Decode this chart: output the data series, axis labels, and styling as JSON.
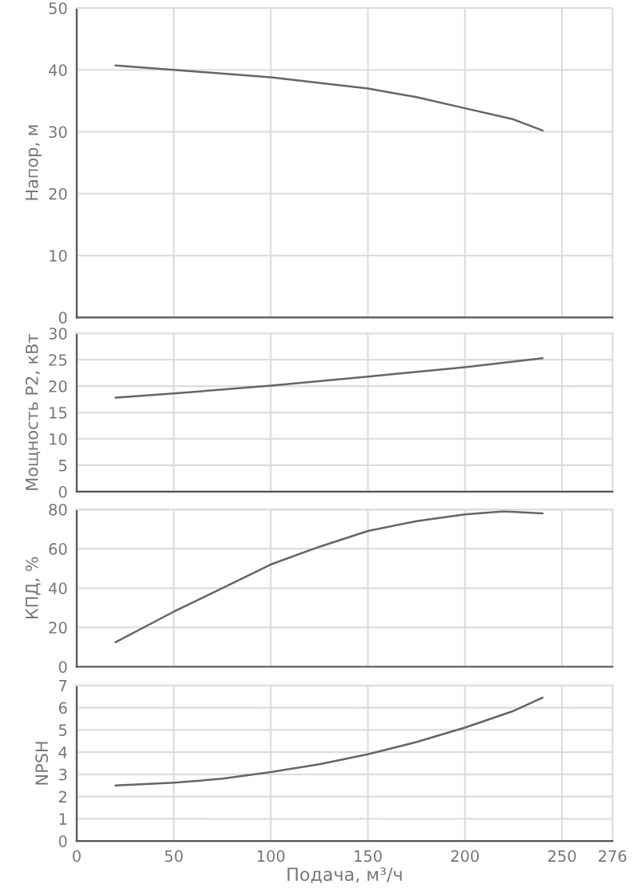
{
  "chart_data": [
    {
      "type": "line",
      "ylabel": "Напор, м",
      "xlim": [
        0,
        276
      ],
      "xticks": [
        0,
        50,
        100,
        150,
        200,
        250,
        276
      ],
      "ylim": [
        0,
        50
      ],
      "yticks": [
        0,
        10,
        20,
        30,
        40,
        50
      ],
      "grid": true,
      "tick_labels": "y",
      "series": [
        {
          "color": "#666666",
          "x": [
            20,
            50,
            100,
            150,
            175,
            200,
            225,
            240
          ],
          "values": [
            40.7,
            40.0,
            38.8,
            37.0,
            35.6,
            33.8,
            32.0,
            30.2
          ]
        }
      ]
    },
    {
      "type": "line",
      "ylabel": "Мощность P2, кВт",
      "xlim": [
        0,
        276
      ],
      "xticks": [
        0,
        50,
        100,
        150,
        200,
        250,
        276
      ],
      "ylim": [
        0,
        30
      ],
      "yticks": [
        0,
        5,
        10,
        15,
        20,
        25,
        30
      ],
      "grid": true,
      "tick_labels": "y",
      "series": [
        {
          "color": "#666666",
          "x": [
            20,
            50,
            100,
            150,
            200,
            240
          ],
          "values": [
            17.8,
            18.6,
            20.1,
            21.8,
            23.6,
            25.3
          ]
        }
      ]
    },
    {
      "type": "line",
      "ylabel": "КПД, %",
      "xlim": [
        0,
        276
      ],
      "xticks": [
        0,
        50,
        100,
        150,
        200,
        250,
        276
      ],
      "ylim": [
        0,
        80
      ],
      "yticks": [
        0,
        20,
        40,
        60,
        80
      ],
      "grid": true,
      "tick_labels": "y",
      "series": [
        {
          "color": "#666666",
          "x": [
            20,
            50,
            75,
            100,
            125,
            150,
            175,
            200,
            220,
            240
          ],
          "values": [
            12.5,
            28,
            40,
            52,
            61,
            69,
            74,
            77.5,
            79,
            78
          ]
        }
      ]
    },
    {
      "type": "line",
      "ylabel": "NPSH",
      "xlabel": "Подача, м³/ч",
      "xlim": [
        0,
        276
      ],
      "xticks": [
        0,
        50,
        100,
        150,
        200,
        250,
        276
      ],
      "ylim": [
        0,
        7
      ],
      "yticks": [
        0,
        1,
        2,
        3,
        4,
        5,
        6,
        7
      ],
      "grid": true,
      "series": [
        {
          "color": "#666666",
          "x": [
            20,
            50,
            75,
            100,
            125,
            150,
            175,
            200,
            225,
            240
          ],
          "values": [
            2.5,
            2.62,
            2.8,
            3.1,
            3.45,
            3.9,
            4.45,
            5.1,
            5.85,
            6.45
          ]
        }
      ]
    }
  ]
}
